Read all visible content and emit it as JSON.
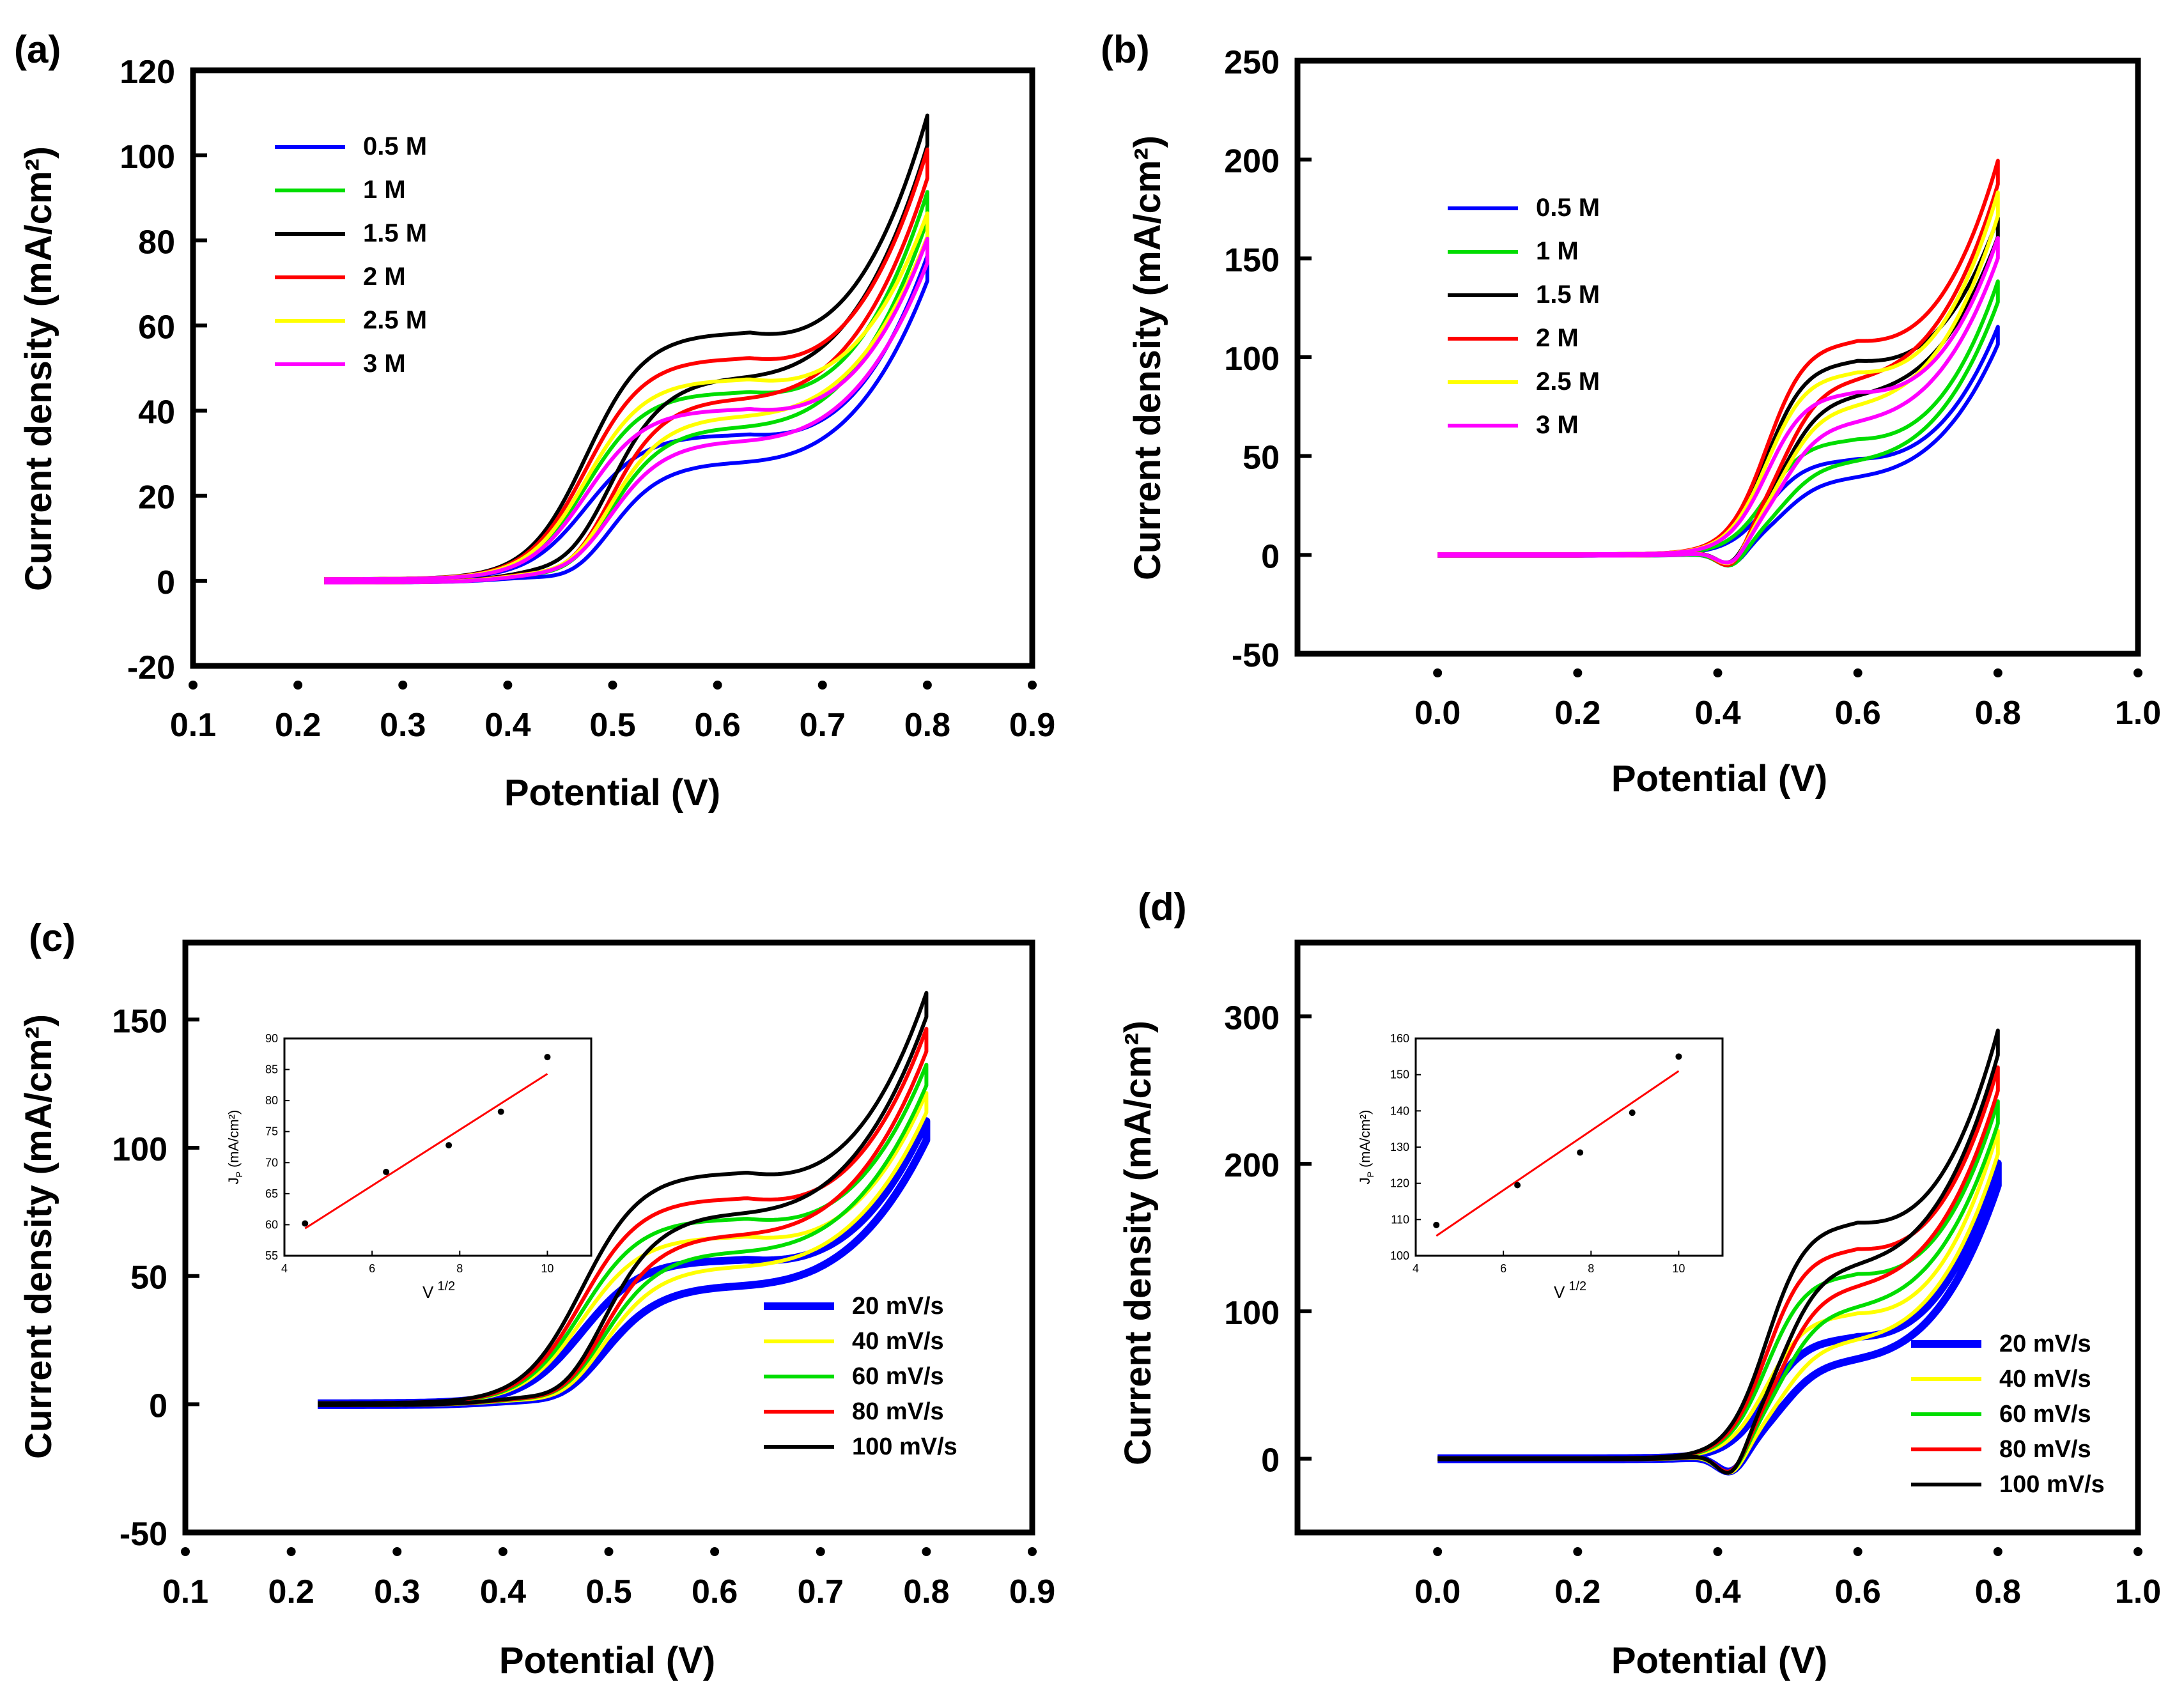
{
  "chart_data": [
    {
      "panel_label": "(a)",
      "type": "line",
      "xlabel": "Potential (V)",
      "ylabel": "Current density (mA/cm²)",
      "xlim": [
        0.1,
        0.9
      ],
      "ylim": [
        -20,
        120
      ],
      "xticks": [
        0.1,
        0.2,
        0.3,
        0.4,
        0.5,
        0.6,
        0.7,
        0.8,
        0.9
      ],
      "xtick_labels": [
        "0.1",
        "0.2",
        "0.3",
        "0.4",
        "0.5",
        "0.6",
        "0.7",
        "0.8",
        "0.9"
      ],
      "yticks": [
        -20,
        0,
        20,
        40,
        60,
        80,
        100,
        120
      ],
      "ytick_labels": [
        "-20",
        "0",
        "20",
        "40",
        "60",
        "80",
        "100",
        "120"
      ],
      "legend_position": "top-left",
      "cv": {
        "E0": 0.225,
        "Emax": 0.8,
        "Eon": 0.475,
        "Epk": 0.63,
        "Ered": 0.47,
        "hump": 0.6,
        "w": 0.06,
        "tailPow": 3
      },
      "series": [
        {
          "name": "0.5 M",
          "color": "#0000ff",
          "peak": 34,
          "end": 76,
          "cdip": -4
        },
        {
          "name": "1 M",
          "color": "#00dd00",
          "peak": 44,
          "end": 91,
          "cdip": -4
        },
        {
          "name": "1.5 M",
          "color": "#000000",
          "peak": 58,
          "end": 109,
          "cdip": -4
        },
        {
          "name": "2 M",
          "color": "#ff0000",
          "peak": 52,
          "end": 101,
          "cdip": -5
        },
        {
          "name": "2.5 M",
          "color": "#ffff00",
          "peak": 47,
          "end": 86,
          "cdip": -4
        },
        {
          "name": "3 M",
          "color": "#ff00ff",
          "peak": 40,
          "end": 80,
          "cdip": -3
        }
      ]
    },
    {
      "panel_label": "(b)",
      "type": "line",
      "xlabel": "Potential (V)",
      "ylabel": "Current density (mA/cm²)",
      "xlim": [
        -0.2,
        1.0
      ],
      "ylim": [
        -50,
        250
      ],
      "xticks": [
        0.0,
        0.2,
        0.4,
        0.6,
        0.8,
        1.0
      ],
      "xtick_labels": [
        "0.0",
        "0.2",
        "0.4",
        "0.6",
        "0.8",
        "1.0"
      ],
      "yticks": [
        -50,
        0,
        50,
        100,
        150,
        200,
        250
      ],
      "ytick_labels": [
        "-50",
        "0",
        "50",
        "100",
        "150",
        "200",
        "250"
      ],
      "legend_position": "upper-left",
      "cv": {
        "E0": 0.0,
        "Emax": 0.8,
        "Eon": 0.47,
        "Epk": 0.6,
        "Ered": 0.42,
        "hump": 0.55,
        "w": 0.04,
        "tailPow": 3
      },
      "series": [
        {
          "name": "0.5 M",
          "color": "#0000ff",
          "peak": 48,
          "end": 115,
          "cdip": -8
        },
        {
          "name": "1 M",
          "color": "#00dd00",
          "peak": 58,
          "end": 138,
          "cdip": -9
        },
        {
          "name": "1.5 M",
          "color": "#000000",
          "peak": 98,
          "end": 170,
          "cdip": -10
        },
        {
          "name": "2 M",
          "color": "#ff0000",
          "peak": 108,
          "end": 199,
          "cdip": -12
        },
        {
          "name": "2.5 M",
          "color": "#ffff00",
          "peak": 92,
          "end": 183,
          "cdip": -10
        },
        {
          "name": "3 M",
          "color": "#ff00ff",
          "peak": 82,
          "end": 160,
          "cdip": -9
        }
      ]
    },
    {
      "panel_label": "(c)",
      "type": "line",
      "xlabel": "Potential (V)",
      "ylabel": "Current density (mA/cm²)",
      "xlim": [
        0.1,
        0.9
      ],
      "ylim": [
        -50,
        180
      ],
      "xticks": [
        0.1,
        0.2,
        0.3,
        0.4,
        0.5,
        0.6,
        0.7,
        0.8,
        0.9
      ],
      "xtick_labels": [
        "0.1",
        "0.2",
        "0.3",
        "0.4",
        "0.5",
        "0.6",
        "0.7",
        "0.8",
        "0.9"
      ],
      "yticks": [
        -50,
        0,
        50,
        100,
        150
      ],
      "ytick_labels": [
        "-50",
        "0",
        "50",
        "100",
        "150"
      ],
      "legend_position": "bottom-right",
      "cv": {
        "E0": 0.225,
        "Emax": 0.8,
        "Eon": 0.475,
        "Epk": 0.63,
        "Ered": 0.465,
        "hump": 0.6,
        "w": 0.06,
        "tailPow": 3
      },
      "series": [
        {
          "name": "20 mV/s",
          "color": "#0000ff",
          "peak": 56,
          "end": 110,
          "cdip": -5,
          "bold": true
        },
        {
          "name": "40 mV/s",
          "color": "#ffff00",
          "peak": 65,
          "end": 121,
          "cdip": -6
        },
        {
          "name": "60 mV/s",
          "color": "#00dd00",
          "peak": 72,
          "end": 132,
          "cdip": -6
        },
        {
          "name": "80 mV/s",
          "color": "#ff0000",
          "peak": 80,
          "end": 146,
          "cdip": -7
        },
        {
          "name": "100 mV/s",
          "color": "#000000",
          "peak": 90,
          "end": 160,
          "cdip": -8
        }
      ],
      "inset": {
        "xlabel": "V",
        "xlabel_sup": "1/2",
        "ylabel_main": "J",
        "ylabel_sub": "P",
        "ylabel_units": "(mA/cm²)",
        "xlim": [
          4,
          11
        ],
        "ylim": [
          55,
          90
        ],
        "xticks": [
          4,
          6,
          8,
          10
        ],
        "xtick_labels": [
          "4",
          "6",
          "8",
          "10"
        ],
        "yticks": [
          55,
          60,
          65,
          70,
          75,
          80,
          85,
          90
        ],
        "ytick_labels": [
          "55",
          "60",
          "65",
          "70",
          "75",
          "80",
          "85",
          "90"
        ],
        "points": [
          [
            4.47,
            60.2
          ],
          [
            6.32,
            68.5
          ],
          [
            7.75,
            72.8
          ],
          [
            8.94,
            78.2
          ],
          [
            10.0,
            87.0
          ]
        ],
        "fit": [
          [
            4.47,
            59.4
          ],
          [
            10.0,
            84.3
          ]
        ],
        "fit_color": "#ff0000"
      }
    },
    {
      "panel_label": "(d)",
      "type": "line",
      "xlabel": "Potential (V)",
      "ylabel": "Current density (mA/cm²)",
      "xlim": [
        -0.2,
        1.0
      ],
      "ylim": [
        -50,
        350
      ],
      "xticks": [
        0.0,
        0.2,
        0.4,
        0.6,
        0.8,
        1.0
      ],
      "xtick_labels": [
        "0.0",
        "0.2",
        "0.4",
        "0.6",
        "0.8",
        "1.0"
      ],
      "yticks": [
        0,
        100,
        200,
        300
      ],
      "ytick_labels": [
        "0",
        "100",
        "200",
        "300"
      ],
      "legend_position": "bottom-right",
      "cv": {
        "E0": 0.0,
        "Emax": 0.8,
        "Eon": 0.47,
        "Epk": 0.6,
        "Ered": 0.42,
        "hump": 0.55,
        "w": 0.04,
        "tailPow": 3
      },
      "series": [
        {
          "name": "20 mV/s",
          "color": "#0000ff",
          "peak": 82,
          "end": 200,
          "cdip": -14,
          "bold": true
        },
        {
          "name": "40 mV/s",
          "color": "#ffff00",
          "peak": 98,
          "end": 222,
          "cdip": -16
        },
        {
          "name": "60 mV/s",
          "color": "#00dd00",
          "peak": 125,
          "end": 242,
          "cdip": -17
        },
        {
          "name": "80 mV/s",
          "color": "#ff0000",
          "peak": 142,
          "end": 265,
          "cdip": -18
        },
        {
          "name": "100 mV/s",
          "color": "#000000",
          "peak": 160,
          "end": 290,
          "cdip": -20
        }
      ],
      "inset": {
        "xlabel": "V",
        "xlabel_sup": "1/2",
        "ylabel_main": "J",
        "ylabel_sub": "P",
        "ylabel_units": "(mA/cm²)",
        "xlim": [
          4,
          11
        ],
        "ylim": [
          100,
          160
        ],
        "xticks": [
          4,
          6,
          8,
          10
        ],
        "xtick_labels": [
          "4",
          "6",
          "8",
          "10"
        ],
        "yticks": [
          100,
          110,
          120,
          130,
          140,
          150,
          160
        ],
        "ytick_labels": [
          "100",
          "110",
          "120",
          "130",
          "140",
          "150",
          "160"
        ],
        "points": [
          [
            4.47,
            108.5
          ],
          [
            6.32,
            119.5
          ],
          [
            7.75,
            128.5
          ],
          [
            8.94,
            139.5
          ],
          [
            10.0,
            155.0
          ]
        ],
        "fit": [
          [
            4.47,
            105.5
          ],
          [
            10.0,
            151.0
          ]
        ],
        "fit_color": "#ff0000"
      }
    }
  ]
}
